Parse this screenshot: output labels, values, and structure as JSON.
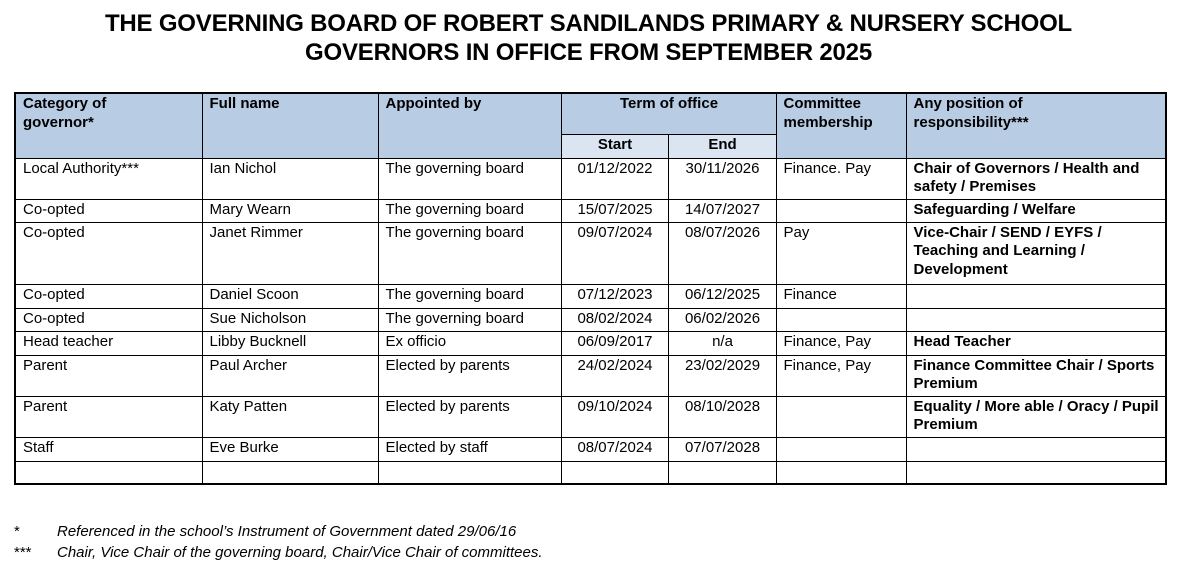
{
  "title": {
    "line1": "THE GOVERNING BOARD OF ROBERT SANDILANDS PRIMARY & NURSERY SCHOOL",
    "line2": "GOVERNORS IN OFFICE FROM SEPTEMBER 2025"
  },
  "table": {
    "header": {
      "category": "Category of\ngovernor*",
      "full_name": "Full name",
      "appointed_by": "Appointed by",
      "term_of_office": "Term of office",
      "start": "Start",
      "end": "End",
      "committee": "Committee\nmembership",
      "responsibility": "Any position of\nresponsibility***"
    },
    "rows": [
      {
        "category": "Local Authority***",
        "name": "Ian Nichol",
        "appointed_by": "The governing board",
        "start": "01/12/2022",
        "end": "30/11/2026",
        "committee": "Finance. Pay",
        "responsibility": "Chair of Governors / Health and safety / Premises"
      },
      {
        "category": "Co-opted",
        "name": "Mary Wearn",
        "appointed_by": "The governing board",
        "start": "15/07/2025",
        "end": "14/07/2027",
        "committee": "",
        "responsibility": "Safeguarding / Welfare"
      },
      {
        "category": "Co-opted",
        "name": "Janet Rimmer",
        "appointed_by": "The governing board",
        "start": "09/07/2024",
        "end": "08/07/2026",
        "committee": "Pay",
        "responsibility": "Vice-Chair / SEND / EYFS / Teaching and Learning / Development"
      },
      {
        "category": "Co-opted",
        "name": "Daniel Scoon",
        "appointed_by": "The governing board",
        "start": "07/12/2023",
        "end": "06/12/2025",
        "committee": "Finance",
        "responsibility": ""
      },
      {
        "category": "Co-opted",
        "name": "Sue Nicholson",
        "appointed_by": "The governing board",
        "start": "08/02/2024",
        "end": "06/02/2026",
        "committee": "",
        "responsibility": ""
      },
      {
        "category": "Head teacher",
        "name": "Libby Bucknell",
        "appointed_by": "Ex officio",
        "start": "06/09/2017",
        "end": "n/a",
        "committee": "Finance, Pay",
        "responsibility": "Head Teacher"
      },
      {
        "category": "Parent",
        "name": "Paul Archer",
        "appointed_by": "Elected by parents",
        "start": "24/02/2024",
        "end": "23/02/2029",
        "committee": "Finance, Pay",
        "responsibility": "Finance Committee Chair / Sports Premium"
      },
      {
        "category": "Parent",
        "name": "Katy Patten",
        "appointed_by": "Elected by parents",
        "start": "09/10/2024",
        "end": "08/10/2028",
        "committee": "",
        "responsibility": "Equality / More able / Oracy / Pupil Premium"
      },
      {
        "category": "Staff",
        "name": "Eve Burke",
        "appointed_by": "Elected by staff",
        "start": "08/07/2024",
        "end": "07/07/2028",
        "committee": "",
        "responsibility": ""
      },
      {
        "category": "",
        "name": "",
        "appointed_by": "",
        "start": "",
        "end": "",
        "committee": "",
        "responsibility": ""
      }
    ]
  },
  "footnotes": [
    {
      "marker": "*",
      "text": "Referenced in the school’s Instrument of Government dated 29/06/16"
    },
    {
      "marker": "***",
      "text": "Chair, Vice Chair of the governing board, Chair/Vice Chair of committees."
    }
  ],
  "colors": {
    "header_bg": "#b8cce4",
    "subheader_bg": "#dbe5f1",
    "border": "#000000",
    "text": "#000000"
  }
}
